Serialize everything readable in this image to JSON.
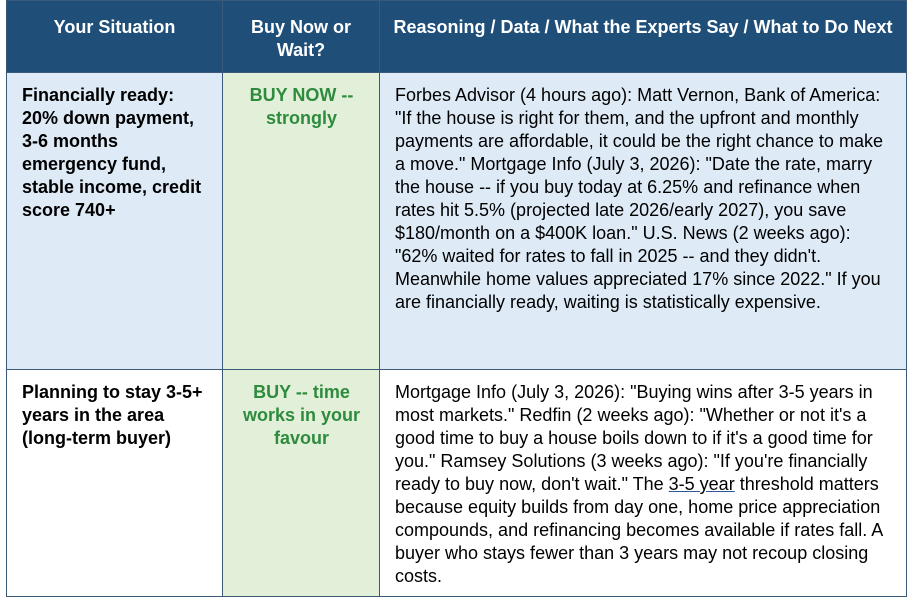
{
  "table": {
    "header": [
      "Your Situation",
      "Buy Now or Wait?",
      "Reasoning / Data / What the Experts Say / What to Do Next"
    ],
    "rows": [
      [
        "Financially ready: 20% down payment, 3-6 months emergency fund, stable income, credit score 740+",
        "BUY NOW -- strongly",
        "Forbes Advisor (4 hours ago): Matt Vernon, Bank of America: \"If the house is right for them, and the upfront and monthly payments are affordable, it could be the right chance to make a move.\" Mortgage Info (July 3, 2026): \"Date the rate, marry the house -- if you buy today at 6.25% and refinance when rates hit 5.5% (projected late 2026/early 2027), you save $180/month on a $400K loan.\" U.S. News (2 weeks ago): \"62% waited for rates to fall in 2025 -- and they didn't. Meanwhile home values appreciated 17% since 2022.\" If you are financially ready, waiting is statistically expensive."
      ],
      [
        "Planning to stay 3-5+ years in the area (long-term buyer)",
        "BUY -- time works in your favour",
        [
          "Mortgage Info (July 3, 2026): \"Buying wins after 3-5 years in most markets.\" Redfin (2 weeks ago): \"Whether or not it's a good time to buy a house boils down to if it's a good time for you.\" Ramsey Solutions (3 weeks ago): \"If you're financially ready to buy now, don't wait.\" The ",
          "3-5 year",
          " threshold matters because equity builds from day one, home price appreciation compounds, and refinancing becomes available if rates fall. A buyer who stays fewer than 3 years may not recoup closing costs."
        ]
      ]
    ]
  }
}
